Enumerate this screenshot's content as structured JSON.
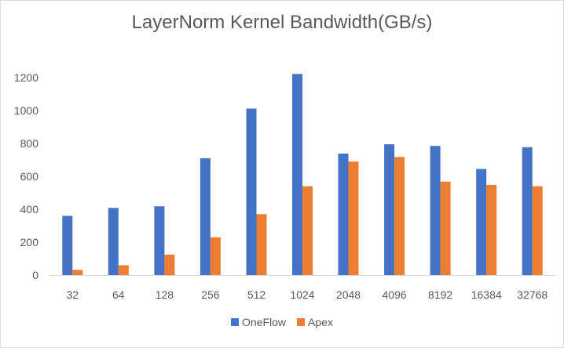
{
  "chart_data": {
    "type": "bar",
    "title": "LayerNorm Kernel Bandwidth(GB/s)",
    "xlabel": "",
    "ylabel": "",
    "categories": [
      "32",
      "64",
      "128",
      "256",
      "512",
      "1024",
      "2048",
      "4096",
      "8192",
      "16384",
      "32768"
    ],
    "series": [
      {
        "name": "OneFlow",
        "color": "#4472c4",
        "values": [
          360,
          408,
          418,
          710,
          1012,
          1222,
          738,
          795,
          785,
          645,
          777
        ]
      },
      {
        "name": "Apex",
        "color": "#ed7d31",
        "values": [
          32,
          60,
          125,
          230,
          370,
          540,
          690,
          718,
          568,
          548,
          540
        ]
      }
    ],
    "ylim": [
      0,
      1200
    ],
    "yticks": [
      0,
      200,
      400,
      600,
      800,
      1000,
      1200
    ],
    "grid": false,
    "legend": "bottom"
  }
}
